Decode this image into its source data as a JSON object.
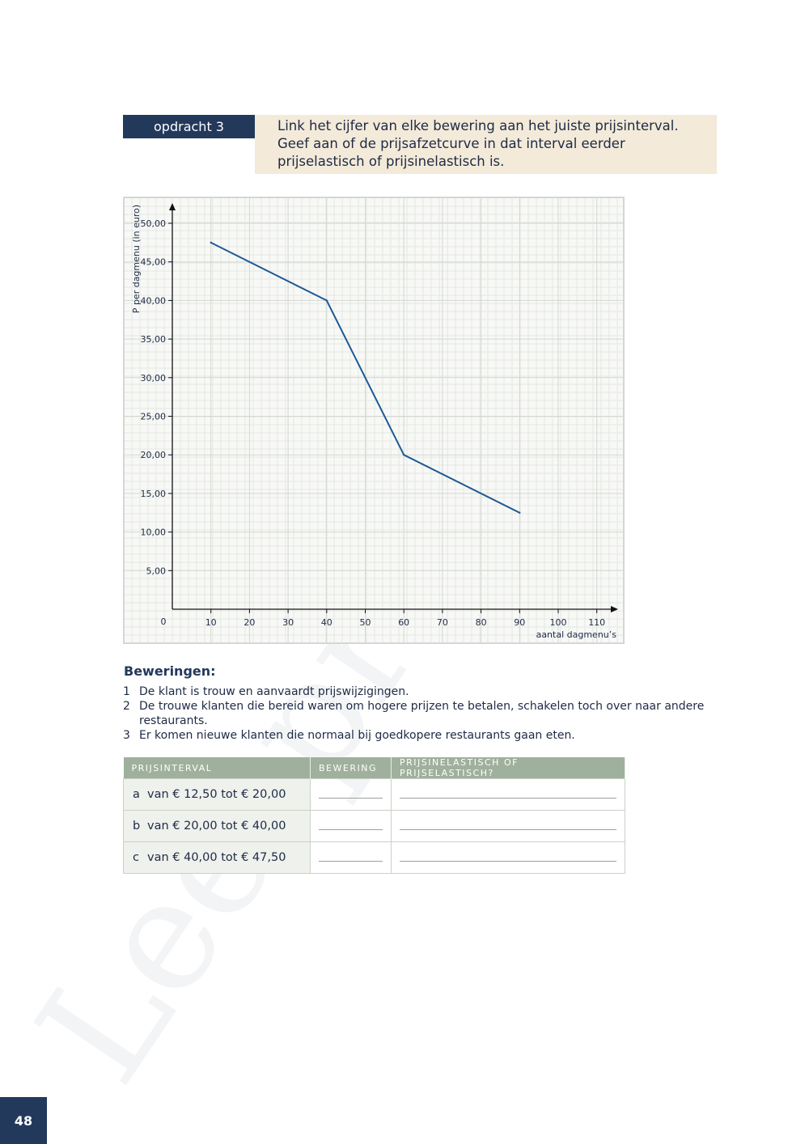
{
  "task": {
    "badge": "opdracht 3",
    "instruction": "Link het cijfer van elke bewering aan het juiste prijsinterval. Geef aan of de prijsafzetcurve in dat interval eerder prijselastisch of prijsinelastisch is."
  },
  "chart_data": {
    "type": "line",
    "ylabel": "P per dagmenu (in euro)",
    "xlabel": "aantal dagmenu’s",
    "origin_label": "0",
    "x_ticks": [
      "10",
      "20",
      "30",
      "40",
      "50",
      "60",
      "70",
      "80",
      "90",
      "100",
      "110"
    ],
    "y_ticks": [
      "5,00",
      "10,00",
      "15,00",
      "20,00",
      "25,00",
      "30,00",
      "35,00",
      "40,00",
      "45,00",
      "50,00"
    ],
    "xlim": [
      0,
      115
    ],
    "ylim": [
      0,
      52
    ],
    "grid": true,
    "line_color": "#1f5a94",
    "series": [
      {
        "x": [
          10,
          40,
          60,
          90
        ],
        "y": [
          47.5,
          40,
          20,
          12.5
        ]
      }
    ]
  },
  "statements": {
    "title": "Beweringen:",
    "items": [
      {
        "num": "1",
        "text": "De klant is trouw en aanvaardt prijswijzigingen."
      },
      {
        "num": "2",
        "text": "De trouwe klanten die bereid waren om hogere prijzen te betalen, schakelen toch over naar andere restaurants."
      },
      {
        "num": "3",
        "text": "Er komen nieuwe klanten die normaal bij goedkopere restaurants gaan eten."
      }
    ]
  },
  "table": {
    "headers": [
      "PRIJSINTERVAL",
      "BEWERING",
      "PRIJSINELASTISCH OF PRIJSELASTISCH?"
    ],
    "rows": [
      {
        "letter": "a",
        "interval": "van € 12,50 tot € 20,00"
      },
      {
        "letter": "b",
        "interval": "van € 20,00 tot € 40,00"
      },
      {
        "letter": "c",
        "interval": "van € 40,00 tot € 47,50"
      }
    ]
  },
  "page_number": "48",
  "watermark": "Leesproef"
}
